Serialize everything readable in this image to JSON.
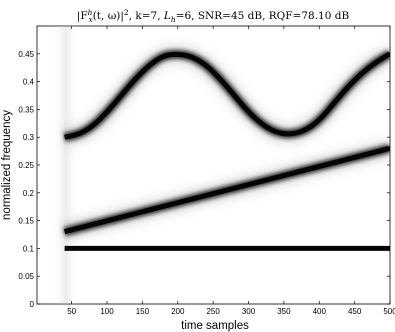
{
  "chart_data": {
    "type": "heatmap",
    "title": "|F_x^h(t,ω)|², k=7, L_h=6, SNR=45 dB, RQF=78.10 dB",
    "title_parts": {
      "expr": "|F",
      "sup": "h",
      "sub": "x",
      "expr_rest": "(t, ω)|",
      "sq": "2",
      "k": ", k=7, ",
      "lh_L": "L",
      "lh_sub": "h",
      "lh_rest": "=6, SNR=45 dB, RQF=78.10 dB"
    },
    "xlabel": "time samples",
    "ylabel": "normalized frequency",
    "xlim": [
      1,
      500
    ],
    "ylim": [
      0,
      0.5
    ],
    "xticks": [
      50,
      100,
      150,
      200,
      250,
      300,
      350,
      400,
      450,
      500
    ],
    "yticks": [
      0,
      0.05,
      0.1,
      0.15,
      0.2,
      0.25,
      0.3,
      0.35,
      0.4,
      0.45
    ],
    "ytick_labels": [
      "0",
      "0.05",
      "0.1",
      "0.15",
      "0.2",
      "0.25",
      "0.3",
      "0.35",
      "0.4",
      "0.45"
    ],
    "colormap": "gray-inverted",
    "series": [
      {
        "component": "constant",
        "x": [
          40,
          500
        ],
        "y": [
          0.1,
          0.1
        ]
      },
      {
        "component": "linear-chirp",
        "x": [
          40,
          500
        ],
        "y": [
          0.13,
          0.28
        ]
      },
      {
        "component": "sinusoidal-fm",
        "x": [
          40,
          60,
          80,
          100,
          120,
          140,
          160,
          180,
          200,
          220,
          240,
          260,
          280,
          300,
          320,
          340,
          360,
          380,
          400,
          420,
          440,
          460,
          480,
          500
        ],
        "y": [
          0.3,
          0.305,
          0.32,
          0.345,
          0.375,
          0.405,
          0.43,
          0.447,
          0.45,
          0.445,
          0.43,
          0.405,
          0.375,
          0.345,
          0.322,
          0.308,
          0.305,
          0.312,
          0.33,
          0.36,
          0.39,
          0.415,
          0.435,
          0.45
        ]
      }
    ]
  }
}
